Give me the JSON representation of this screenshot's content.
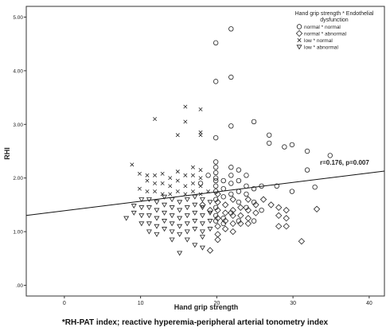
{
  "chart_data": {
    "type": "scatter",
    "xlabel": "Hand grip strength",
    "ylabel": "RHI",
    "xlim": [
      -5,
      42
    ],
    "ylim": [
      -0.2,
      5.2
    ],
    "x_ticks": [
      0,
      10,
      20,
      30,
      40
    ],
    "x_tick_labels": [
      "0",
      "10",
      "20",
      "30",
      "40"
    ],
    "y_ticks": [
      0,
      1,
      2,
      3,
      4,
      5
    ],
    "y_tick_labels": [
      ".00",
      "1.00",
      "2.00",
      "3.00",
      "4.00",
      "5.00"
    ],
    "grid": false,
    "legend": {
      "position": "top-right",
      "title_line1": "Hand grip strength * Endothelial",
      "title_line2": "dysfunction"
    },
    "annotation": "r=0.176, p=0.007",
    "fit_line": {
      "intercept": 1.39,
      "slope": 0.0176
    },
    "series": [
      {
        "name": "normal * normal",
        "marker": "circle",
        "points": [
          [
            20,
            4.52
          ],
          [
            22,
            4.78
          ],
          [
            20,
            3.8
          ],
          [
            22,
            3.88
          ],
          [
            22,
            2.97
          ],
          [
            25,
            3.05
          ],
          [
            20,
            2.75
          ],
          [
            27,
            2.8
          ],
          [
            27,
            2.65
          ],
          [
            29,
            2.58
          ],
          [
            30,
            2.62
          ],
          [
            32,
            2.5
          ],
          [
            35,
            2.42
          ],
          [
            32,
            2.15
          ],
          [
            33,
            1.83
          ],
          [
            30,
            1.75
          ],
          [
            28,
            1.85
          ],
          [
            26,
            1.85
          ],
          [
            24,
            1.85
          ],
          [
            25,
            1.8
          ],
          [
            20,
            2.3
          ],
          [
            20,
            2.2
          ],
          [
            20,
            2.1
          ],
          [
            20,
            2.0
          ],
          [
            20,
            1.95
          ],
          [
            20,
            1.85
          ],
          [
            20,
            1.75
          ],
          [
            20,
            1.6
          ],
          [
            21,
            1.95
          ],
          [
            21,
            1.8
          ],
          [
            21,
            1.65
          ],
          [
            22,
            2.2
          ],
          [
            22,
            2.05
          ],
          [
            22,
            1.9
          ],
          [
            22,
            1.7
          ],
          [
            23,
            2.15
          ],
          [
            23,
            1.95
          ],
          [
            23,
            1.75
          ],
          [
            23,
            1.55
          ],
          [
            24,
            2.05
          ],
          [
            24,
            1.7
          ],
          [
            24,
            1.45
          ],
          [
            25,
            1.55
          ],
          [
            26,
            1.4
          ],
          [
            20,
            1.45
          ],
          [
            20,
            1.3
          ],
          [
            21,
            1.25
          ],
          [
            22,
            1.35
          ],
          [
            23,
            1.2
          ],
          [
            19,
            2.05
          ],
          [
            18,
            1.9
          ],
          [
            21,
            1.15
          ],
          [
            20,
            1.2
          ],
          [
            25,
            1.2
          ]
        ]
      },
      {
        "name": "normal * abnormal",
        "marker": "diamond",
        "points": [
          [
            20,
            1.7
          ],
          [
            20,
            1.55
          ],
          [
            20,
            1.4
          ],
          [
            20,
            1.25
          ],
          [
            20,
            1.1
          ],
          [
            20,
            0.95
          ],
          [
            20,
            0.85
          ],
          [
            21,
            1.5
          ],
          [
            21,
            1.35
          ],
          [
            21,
            1.2
          ],
          [
            22,
            1.6
          ],
          [
            22,
            1.4
          ],
          [
            22,
            1.3
          ],
          [
            22,
            1.15
          ],
          [
            22,
            1.0
          ],
          [
            23,
            1.45
          ],
          [
            23,
            1.3
          ],
          [
            23,
            1.15
          ],
          [
            24,
            1.6
          ],
          [
            24,
            1.4
          ],
          [
            24,
            1.25
          ],
          [
            25,
            1.5
          ],
          [
            25,
            1.35
          ],
          [
            26,
            1.6
          ],
          [
            28,
            1.45
          ],
          [
            28,
            1.3
          ],
          [
            29,
            1.4
          ],
          [
            29,
            1.25
          ],
          [
            28,
            1.1
          ],
          [
            29,
            1.1
          ],
          [
            31,
            0.82
          ],
          [
            33,
            1.42
          ],
          [
            19,
            0.65
          ],
          [
            19,
            1.4
          ],
          [
            18,
            1.5
          ],
          [
            21,
            1.05
          ],
          [
            27,
            1.5
          ],
          [
            24,
            1.15
          ]
        ]
      },
      {
        "name": "low * normal",
        "marker": "x",
        "points": [
          [
            12,
            3.1
          ],
          [
            16,
            3.33
          ],
          [
            16,
            3.05
          ],
          [
            18,
            3.28
          ],
          [
            15,
            2.8
          ],
          [
            18,
            2.85
          ],
          [
            18,
            2.8
          ],
          [
            9,
            2.25
          ],
          [
            10,
            2.08
          ],
          [
            11,
            2.05
          ],
          [
            12,
            2.05
          ],
          [
            13,
            2.08
          ],
          [
            14,
            2.0
          ],
          [
            15,
            2.12
          ],
          [
            16,
            2.05
          ],
          [
            17,
            2.2
          ],
          [
            17,
            2.05
          ],
          [
            18,
            2.15
          ],
          [
            18,
            2.0
          ],
          [
            11,
            1.95
          ],
          [
            12,
            1.9
          ],
          [
            13,
            1.9
          ],
          [
            14,
            1.85
          ],
          [
            15,
            1.95
          ],
          [
            16,
            1.85
          ],
          [
            17,
            1.9
          ],
          [
            18,
            1.85
          ],
          [
            10,
            1.8
          ],
          [
            11,
            1.75
          ],
          [
            12,
            1.75
          ],
          [
            13,
            1.7
          ],
          [
            14,
            1.7
          ],
          [
            15,
            1.75
          ],
          [
            16,
            1.7
          ],
          [
            17,
            1.75
          ],
          [
            18,
            1.7
          ],
          [
            19,
            1.75
          ]
        ]
      },
      {
        "name": "low * abnormal",
        "marker": "triangle-down",
        "points": [
          [
            8,
            1.25
          ],
          [
            9,
            1.35
          ],
          [
            9,
            1.48
          ],
          [
            10,
            1.45
          ],
          [
            10,
            1.3
          ],
          [
            10,
            1.15
          ],
          [
            11,
            1.6
          ],
          [
            11,
            1.45
          ],
          [
            11,
            1.3
          ],
          [
            11,
            1.15
          ],
          [
            12,
            1.55
          ],
          [
            12,
            1.4
          ],
          [
            12,
            1.25
          ],
          [
            12,
            1.1
          ],
          [
            12,
            0.95
          ],
          [
            13,
            1.65
          ],
          [
            13,
            1.5
          ],
          [
            13,
            1.35
          ],
          [
            13,
            1.2
          ],
          [
            13,
            1.05
          ],
          [
            14,
            1.6
          ],
          [
            14,
            1.45
          ],
          [
            14,
            1.3
          ],
          [
            14,
            1.15
          ],
          [
            14,
            1.0
          ],
          [
            14,
            0.85
          ],
          [
            15,
            1.55
          ],
          [
            15,
            1.4
          ],
          [
            15,
            1.25
          ],
          [
            15,
            1.1
          ],
          [
            15,
            0.95
          ],
          [
            15,
            0.6
          ],
          [
            16,
            1.6
          ],
          [
            16,
            1.45
          ],
          [
            16,
            1.3
          ],
          [
            16,
            1.15
          ],
          [
            16,
            1.0
          ],
          [
            16,
            0.85
          ],
          [
            17,
            1.65
          ],
          [
            17,
            1.5
          ],
          [
            17,
            1.35
          ],
          [
            17,
            1.2
          ],
          [
            17,
            1.05
          ],
          [
            17,
            0.75
          ],
          [
            18,
            1.6
          ],
          [
            18,
            1.45
          ],
          [
            18,
            1.3
          ],
          [
            18,
            1.15
          ],
          [
            18,
            1.0
          ],
          [
            18,
            0.9
          ],
          [
            19,
            1.55
          ],
          [
            19,
            1.35
          ],
          [
            19,
            1.2
          ],
          [
            19,
            1.05
          ],
          [
            18,
            0.7
          ],
          [
            10,
            1.6
          ],
          [
            11,
            1.0
          ]
        ]
      }
    ]
  },
  "caption": "*RH-PAT index; reactive hyperemia-peripheral arterial tonometry index"
}
